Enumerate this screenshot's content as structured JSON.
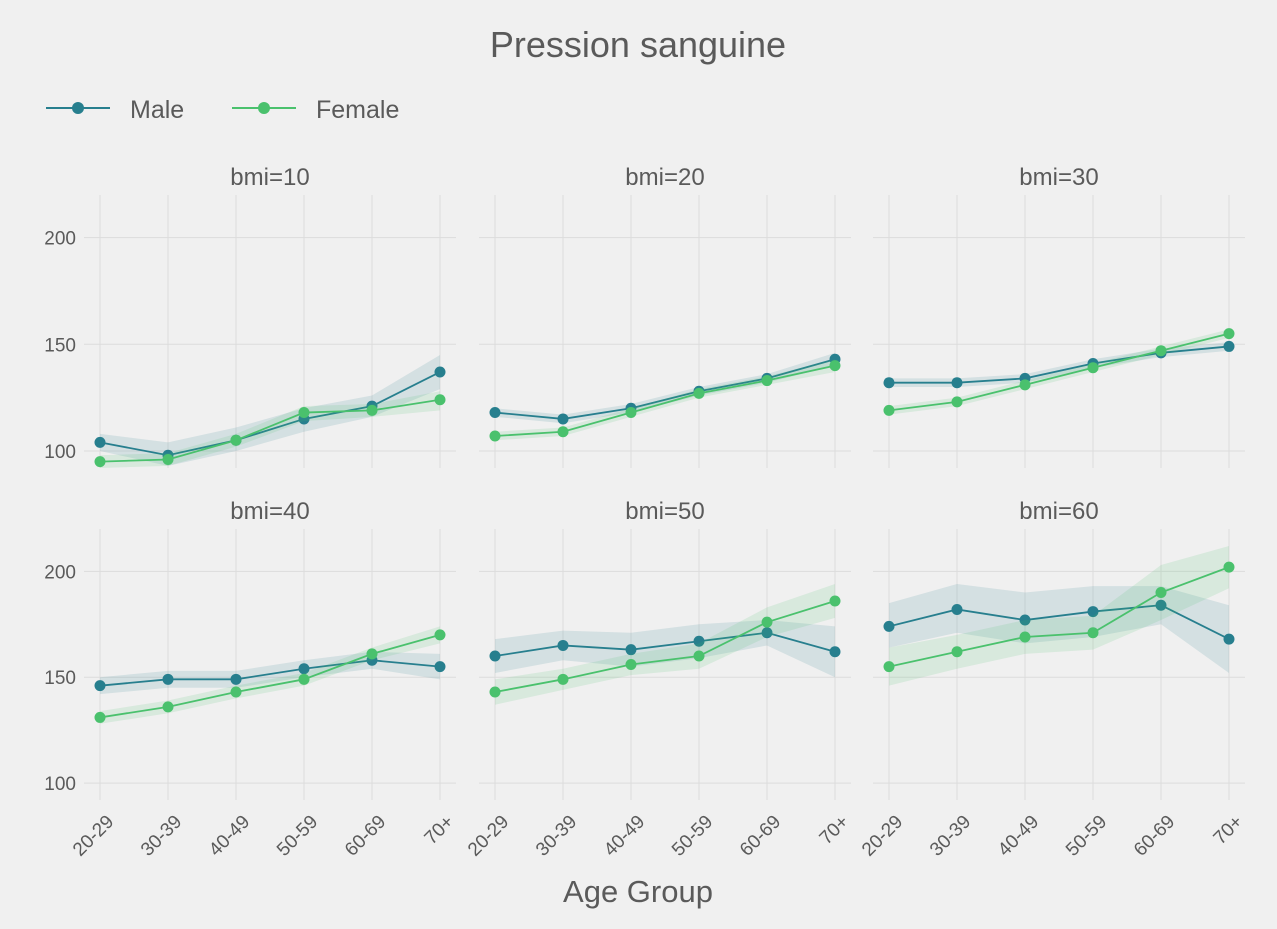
{
  "colors": {
    "background": "#f0f0f0",
    "grid": "#dcdcdc",
    "text": "#5a5a5a",
    "male": "#277f8e",
    "female": "#4ac16d"
  },
  "chart_data": {
    "type": "line",
    "title": "Pression sanguine",
    "xlabel": "Age Group",
    "ylabel": "",
    "ylim": [
      92,
      220
    ],
    "yticks": [
      100,
      150,
      200
    ],
    "grid": true,
    "legend_position": "top-left",
    "categories": [
      "20-29",
      "30-39",
      "40-49",
      "50-59",
      "60-69",
      "70+"
    ],
    "series_meta": [
      {
        "key": "male",
        "name": "Male",
        "color": "#277f8e"
      },
      {
        "key": "female",
        "name": "Female",
        "color": "#4ac16d"
      }
    ],
    "panels": [
      {
        "label": "bmi=10",
        "male": {
          "values": [
            104,
            98,
            105,
            115,
            121,
            137
          ],
          "lower": [
            100,
            93,
            100,
            109,
            116,
            129
          ],
          "upper": [
            108,
            104,
            111,
            120,
            126,
            145
          ]
        },
        "female": {
          "values": [
            95,
            96,
            105,
            118,
            119,
            124
          ],
          "lower": [
            92,
            93,
            102,
            114,
            116,
            119
          ],
          "upper": [
            98,
            99,
            108,
            121,
            122,
            128
          ]
        }
      },
      {
        "label": "bmi=20",
        "male": {
          "values": [
            118,
            115,
            120,
            128,
            134,
            143
          ],
          "lower": [
            116,
            113,
            118,
            126,
            132,
            140
          ],
          "upper": [
            120,
            117,
            122,
            130,
            136,
            146
          ]
        },
        "female": {
          "values": [
            107,
            109,
            118,
            127,
            133,
            140
          ],
          "lower": [
            105,
            107,
            116,
            125,
            131,
            137
          ],
          "upper": [
            109,
            111,
            120,
            129,
            135,
            143
          ]
        }
      },
      {
        "label": "bmi=30",
        "male": {
          "values": [
            132,
            132,
            134,
            141,
            146,
            149
          ],
          "lower": [
            130,
            130,
            132,
            139,
            144,
            147
          ],
          "upper": [
            134,
            134,
            136,
            143,
            148,
            151
          ]
        },
        "female": {
          "values": [
            119,
            123,
            131,
            139,
            147,
            155
          ],
          "lower": [
            117,
            121,
            129,
            137,
            145,
            153
          ],
          "upper": [
            121,
            125,
            133,
            141,
            149,
            157
          ]
        }
      },
      {
        "label": "bmi=40",
        "male": {
          "values": [
            146,
            149,
            149,
            154,
            158,
            155
          ],
          "lower": [
            142,
            145,
            145,
            150,
            154,
            149
          ],
          "upper": [
            150,
            153,
            153,
            158,
            162,
            161
          ]
        },
        "female": {
          "values": [
            131,
            136,
            143,
            149,
            161,
            170
          ],
          "lower": [
            128,
            133,
            140,
            146,
            158,
            166
          ],
          "upper": [
            134,
            139,
            146,
            152,
            164,
            174
          ]
        }
      },
      {
        "label": "bmi=50",
        "male": {
          "values": [
            160,
            165,
            163,
            167,
            171,
            162
          ],
          "lower": [
            152,
            158,
            155,
            159,
            165,
            150
          ],
          "upper": [
            168,
            172,
            171,
            175,
            177,
            174
          ]
        },
        "female": {
          "values": [
            143,
            149,
            156,
            160,
            176,
            186
          ],
          "lower": [
            137,
            144,
            151,
            154,
            169,
            178
          ],
          "upper": [
            149,
            154,
            161,
            166,
            183,
            194
          ]
        }
      },
      {
        "label": "bmi=60",
        "male": {
          "values": [
            174,
            182,
            177,
            181,
            184,
            168
          ],
          "lower": [
            164,
            171,
            166,
            169,
            175,
            152
          ],
          "upper": [
            185,
            194,
            190,
            193,
            193,
            184
          ]
        },
        "female": {
          "values": [
            155,
            162,
            169,
            171,
            190,
            202
          ],
          "lower": [
            146,
            154,
            161,
            163,
            177,
            192
          ],
          "upper": [
            164,
            170,
            177,
            179,
            203,
            212
          ]
        }
      }
    ]
  }
}
